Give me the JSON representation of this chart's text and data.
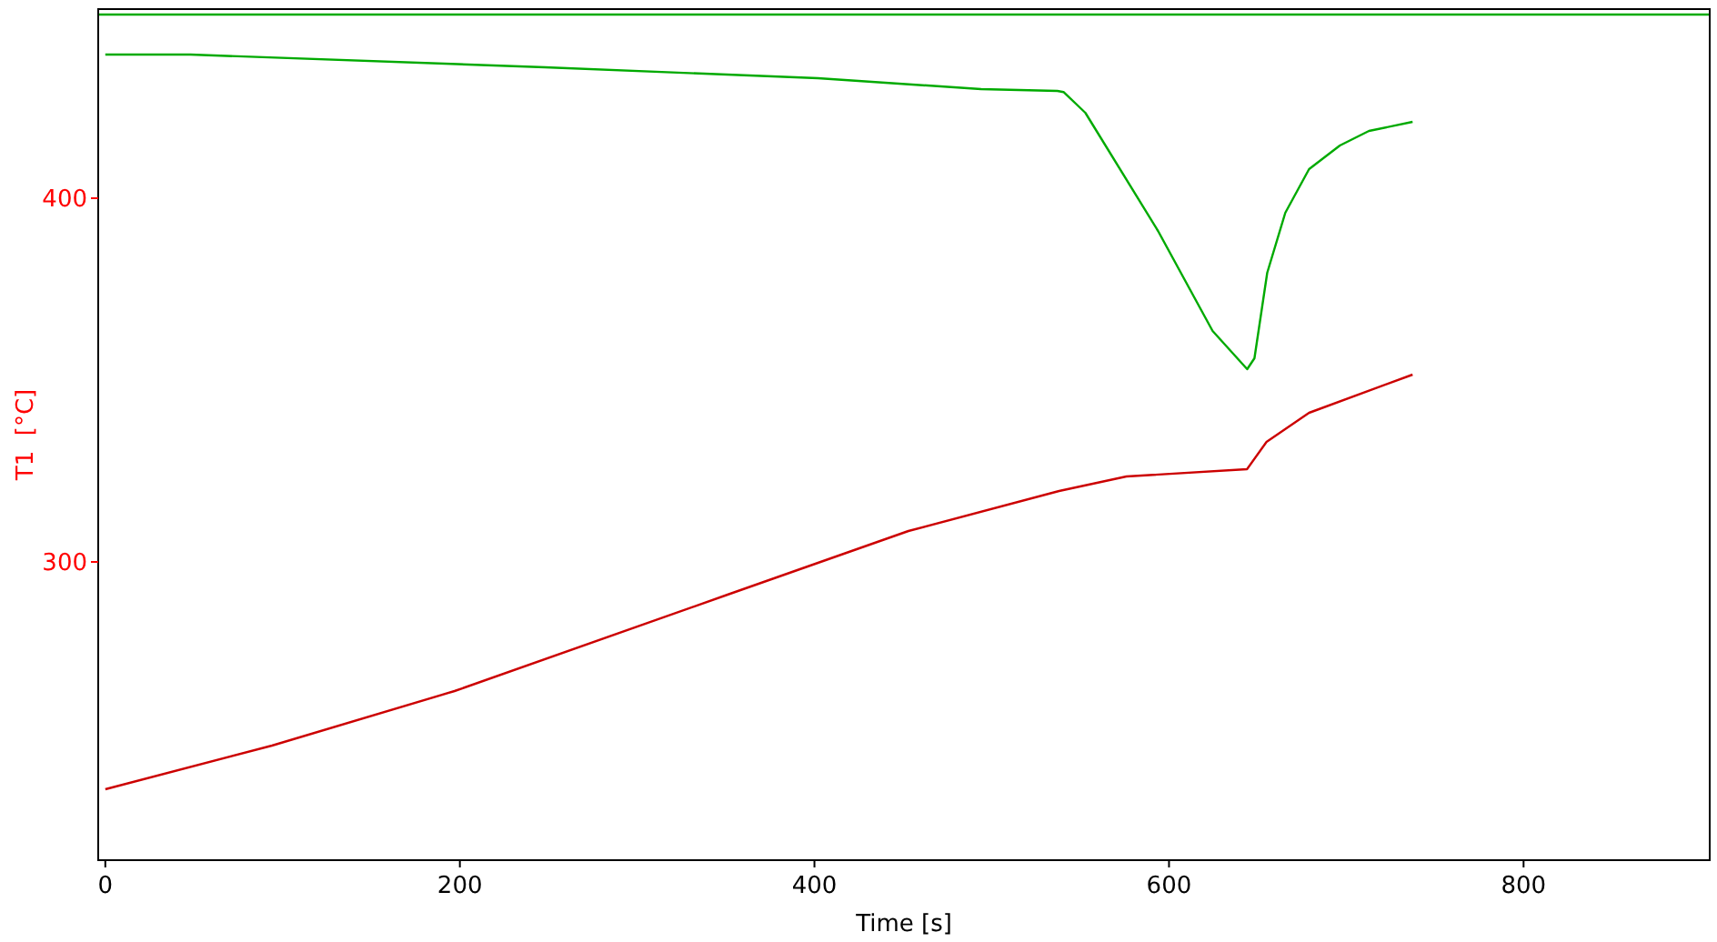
{
  "chart_data": {
    "type": "line",
    "xlabel": "Time [s]",
    "ylabel": "T1  [°C]",
    "xlim": [
      -4,
      905
    ],
    "ylim": [
      218,
      452
    ],
    "xticks": [
      0,
      200,
      400,
      600,
      800
    ],
    "yticks": [
      300,
      400
    ],
    "grid": false,
    "marker": "none",
    "line_style": "solid",
    "series": [
      {
        "color": "#cc0000",
        "x": [
          0,
          94,
          197,
          351,
          453,
          538,
          576,
          644,
          655,
          679,
          737.4
        ],
        "values": [
          237.5,
          249.5,
          264.5,
          291,
          308.5,
          319.5,
          323.5,
          325.5,
          333,
          341,
          351.5
        ]
      },
      {
        "color": "#00aa00",
        "x": [
          0,
          48,
          248,
          402,
          494,
          537,
          540.5,
          552.8,
          593.8,
          624.6,
          644.1,
          648.2,
          655.4,
          665.6,
          679,
          696.4,
          712.8,
          737.4
        ],
        "values": [
          439.5,
          439.5,
          436,
          433,
          430,
          429.5,
          429.2,
          423.5,
          391,
          363.5,
          353,
          356,
          379.5,
          396,
          408,
          414.5,
          418.5,
          421
        ]
      },
      {
        "color": "#00aa00",
        "x": [
          -4,
          905
        ],
        "values": [
          450.5,
          450.5
        ]
      }
    ]
  }
}
